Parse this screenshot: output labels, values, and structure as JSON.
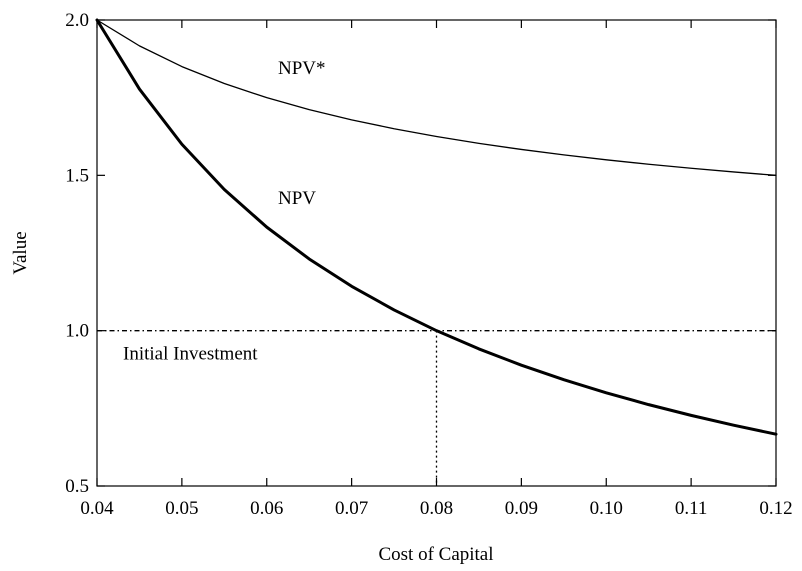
{
  "chart_data": {
    "type": "line",
    "xlabel": "Cost of Capital",
    "ylabel": "Value",
    "x": [
      0.04,
      0.045,
      0.05,
      0.055,
      0.06,
      0.065,
      0.07,
      0.075,
      0.08,
      0.085,
      0.09,
      0.095,
      0.1,
      0.105,
      0.11,
      0.115,
      0.12
    ],
    "series": [
      {
        "name": "NPV*",
        "color": "#000000",
        "values": [
          2.0,
          1.9167,
          1.85,
          1.7955,
          1.75,
          1.7115,
          1.6786,
          1.65,
          1.625,
          1.6029,
          1.5833,
          1.5658,
          1.55,
          1.5357,
          1.5227,
          1.5109,
          1.5
        ]
      },
      {
        "name": "NPV",
        "color": "#000000",
        "values": [
          2.0,
          1.7778,
          1.6,
          1.4545,
          1.3333,
          1.2308,
          1.1429,
          1.0667,
          1.0,
          0.9412,
          0.8889,
          0.8421,
          0.8,
          0.7619,
          0.7273,
          0.6957,
          0.6667
        ]
      }
    ],
    "reference_lines": [
      {
        "axis": "y",
        "value": 1.0,
        "label": "Initial Investment"
      },
      {
        "axis": "x",
        "value": 0.08
      }
    ],
    "xlim": [
      0.04,
      0.12
    ],
    "ylim": [
      0.5,
      2.0
    ],
    "xticks": [
      0.04,
      0.05,
      0.06,
      0.07,
      0.08,
      0.09,
      {
        "value": 0.1,
        "label": "0.10"
      },
      0.11,
      0.12
    ],
    "yticks": [
      0.5,
      {
        "value": 1.0,
        "label": "1.0"
      },
      1.5,
      {
        "value": 2.0,
        "label": "2.0"
      }
    ],
    "grid": false
  }
}
